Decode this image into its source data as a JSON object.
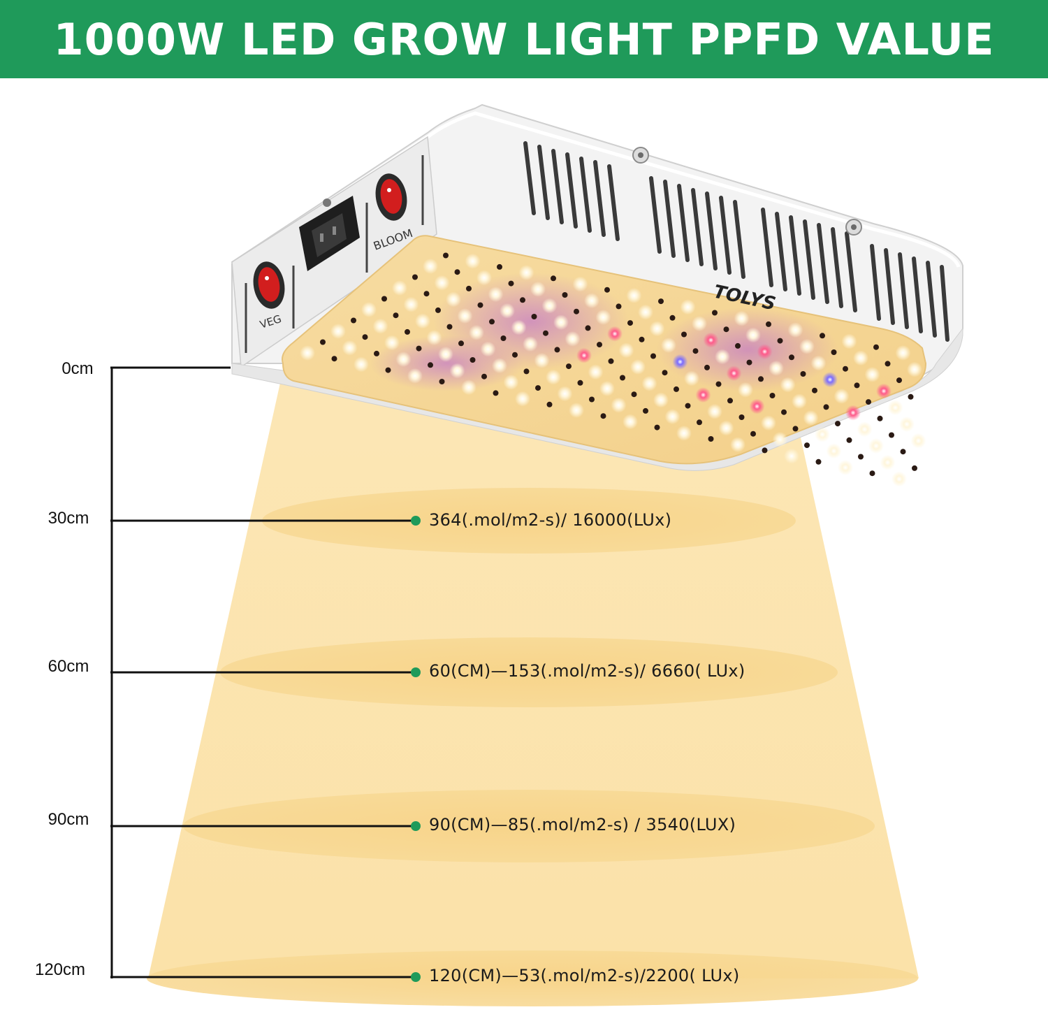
{
  "banner": {
    "title": "1000W LED GROW LIGHT PPFD VALUE"
  },
  "colors": {
    "banner_green": "#1f9a5a",
    "marker_green": "#1f9a5a",
    "light_cone": "#fde7b0",
    "light_ring": "#f6cf7e"
  },
  "device": {
    "brand": "TOLYS",
    "switches": [
      {
        "label": "VEG",
        "icon": "red-rocker-switch-icon"
      },
      {
        "label": "BLOOM",
        "icon": "red-rocker-switch-icon"
      }
    ],
    "power_socket_icon": "power-socket-icon"
  },
  "distances": [
    {
      "label": "0cm",
      "reading": ""
    },
    {
      "label": "30cm",
      "reading": "364(.mol/m2-s)/ 16000(LUx)"
    },
    {
      "label": "60cm",
      "reading": "60(CM)—153(.mol/m2-s)/ 6660( LUx)"
    },
    {
      "label": "90cm",
      "reading": "90(CM)—85(.mol/m2-s) / 3540(LUX)"
    },
    {
      "label": "120cm",
      "reading": "120(CM)—53(.mol/m2-s)/2200( LUx)"
    }
  ]
}
